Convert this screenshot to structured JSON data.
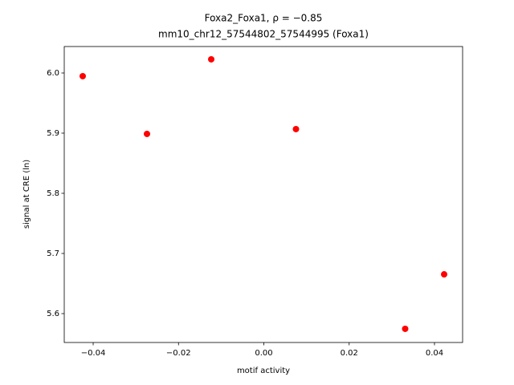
{
  "chart_data": {
    "type": "scatter",
    "title": "Foxa2_Foxa1, ρ = −0.85",
    "subtitle": "mm10_chr12_57544802_57544995 (Foxa1)",
    "x_label": "motif activity",
    "y_label": "signal at CRE (ln)",
    "color": "#ff0000",
    "x": [
      -0.04245,
      -0.02739,
      -0.01233,
      0.00753,
      0.03313,
      0.04226
    ],
    "values": [
      5.9947,
      5.8987,
      6.0227,
      5.9067,
      5.5747,
      5.6653
    ],
    "xlim": [
      -0.04678,
      0.04659
    ],
    "ylim": [
      5.552,
      6.044
    ],
    "xticks": [
      {
        "value": -0.04,
        "label": "−0.04"
      },
      {
        "value": -0.02,
        "label": "−0.02"
      },
      {
        "value": 0,
        "label": "0.00"
      },
      0.02,
      0.04
    ],
    "yticks": [
      5.6,
      5.7,
      5.8,
      5.9,
      {
        "value": 6,
        "label": "6.0"
      }
    ],
    "grid": false
  }
}
